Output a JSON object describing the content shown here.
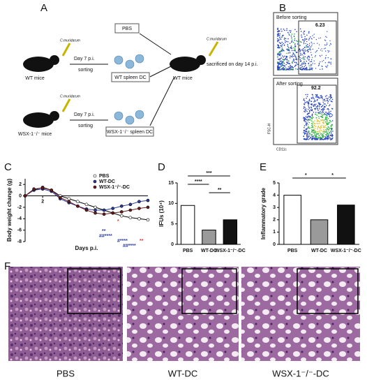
{
  "panels": [
    "A",
    "B",
    "C",
    "D",
    "E",
    "F"
  ],
  "diagram": {
    "pathogen": "C.muridarum",
    "wt_mice": "WT mice",
    "ko_mice": "WSX-1⁻/⁻ mice",
    "day7": "Day 7 p.i.",
    "sorting": "sorting",
    "wt_dc": "WT spleen DC",
    "ko_dc": "WSX-1⁻/⁻ spleen DC",
    "pbs": "PBS",
    "recipient": "WT mice",
    "sacrificed": "sacrificed on day 14 p.i."
  },
  "flow": {
    "before": "Before sorting",
    "before_pct": "6.23",
    "after": "After sorting",
    "after_pct": "92.2",
    "ylabel": "FSC-H",
    "xlabel": "CD11c"
  },
  "histology": [
    "PBS",
    "WT-DC",
    "WSX-1⁻/⁻-DC"
  ],
  "chart_data": [
    {
      "type": "line",
      "xlabel": "Days p.i.",
      "ylabel": "Body weight change (g)",
      "x": [
        0,
        1,
        2,
        3,
        4,
        5,
        6,
        7,
        8,
        9,
        10,
        11,
        12,
        13,
        14
      ],
      "xlim": [
        0,
        14
      ],
      "xticks": [
        2
      ],
      "ylim": [
        -8,
        3
      ],
      "yticks": [
        2,
        0,
        -2,
        -4,
        -6,
        -8
      ],
      "series": [
        {
          "name": "PBS",
          "color": "#ffffff",
          "values": [
            0,
            1,
            1.5,
            1,
            0,
            -0.5,
            -1,
            -1.5,
            -2,
            -2.5,
            -3,
            -3.5,
            -3.8,
            -4,
            -4.2
          ]
        },
        {
          "name": "WT-DC",
          "color": "#2b3a9c",
          "values": [
            0,
            1,
            1.2,
            0.8,
            -0.5,
            -1.2,
            -1.8,
            -2.3,
            -2.5,
            -2.5,
            -2.2,
            -1.8,
            -1.5,
            -1,
            -0.8
          ]
        },
        {
          "name": "WSX-1⁻/⁻-DC",
          "color": "#6b1a1a",
          "values": [
            0,
            1.2,
            1.4,
            1,
            -0.3,
            -1,
            -1.8,
            -2.5,
            -3,
            -3.2,
            -3,
            -2.8,
            -2.5,
            -2.2,
            -2
          ]
        }
      ],
      "annotations": [
        "**",
        "##****",
        "#****",
        "##****",
        "*",
        "**"
      ]
    },
    {
      "type": "bar",
      "ylabel": "IFUs (10⁴)",
      "categories": [
        "PBS",
        "WT-DC",
        "WSX-1⁻/⁻-DC"
      ],
      "values": [
        9.5,
        3.5,
        6
      ],
      "colors": [
        "#ffffff",
        "#9a9a9a",
        "#111111"
      ],
      "ylim": [
        0,
        15
      ],
      "yticks": [
        0,
        5,
        10,
        15
      ],
      "annotations": [
        "***",
        "****",
        "**"
      ]
    },
    {
      "type": "bar",
      "ylabel": "Inflammatory grade",
      "categories": [
        "PBS",
        "WT-DC",
        "WSX-1⁻/⁻-DC"
      ],
      "values": [
        4,
        2,
        3.2
      ],
      "colors": [
        "#ffffff",
        "#9a9a9a",
        "#111111"
      ],
      "ylim": [
        0,
        5
      ],
      "yticks": [
        0,
        1,
        2,
        3,
        4,
        5
      ],
      "annotations": [
        "*",
        "*"
      ]
    }
  ]
}
